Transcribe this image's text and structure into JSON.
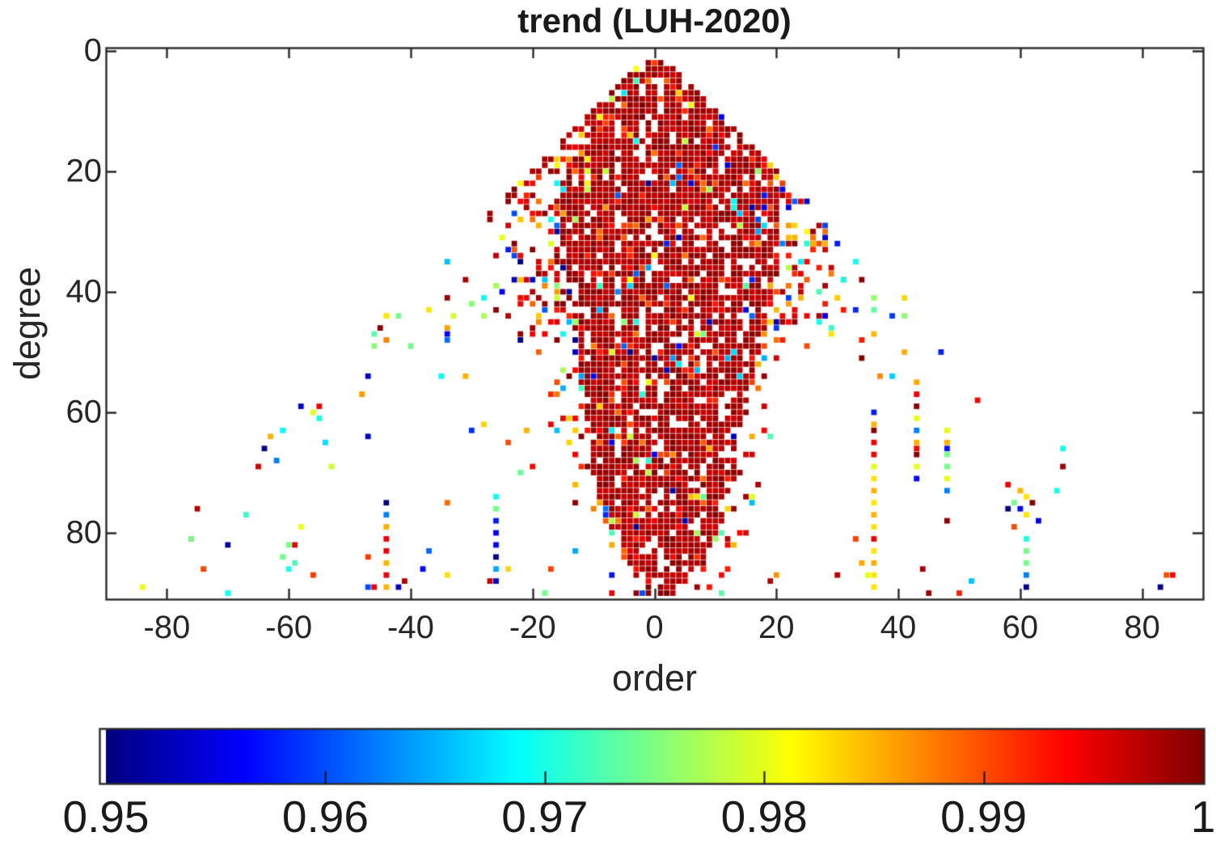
{
  "figure": {
    "background": "#ffffff",
    "axis_color": "#2b2b2b",
    "text_color": "#262626"
  },
  "chart_data": {
    "type": "heatmap",
    "title": "trend (LUH-2020)",
    "xlabel": "order",
    "ylabel": "degree",
    "xlim": [
      -90,
      90
    ],
    "ylim": [
      -0.5,
      91
    ],
    "y_reversed": true,
    "x_ticks": [
      -80,
      -60,
      -40,
      -20,
      0,
      20,
      40,
      60,
      80
    ],
    "y_ticks": [
      0,
      20,
      40,
      60,
      80
    ],
    "grid": false,
    "legend": "none",
    "colormap": "jet",
    "clim": [
      0.95,
      1
    ],
    "colorbar": {
      "orientation": "horizontal",
      "tick_values": [
        0.95,
        0.96,
        0.97,
        0.98,
        0.99,
        1
      ],
      "tick_labels": [
        "0.95",
        "0.96",
        "0.97",
        "0.98",
        "0.99",
        "1"
      ],
      "inner_ticks": [
        0.96,
        0.97,
        0.98,
        0.99
      ],
      "low_clip_color": "#ffffff"
    },
    "description": "Spherical-harmonic triangle plot (|order| <= degree, degree 2..90, apex at top). Dense dark-red mass (values ~0.994-1) around order 0 widening to ~|15-20| near degree 20-30 and narrowing toward degree ~88; upper wings (degree < ~48) sparsely filled with mixed jet colors; lower wings nearly empty except isolated points and vertical streaks.",
    "generator": {
      "seed": 1337,
      "center_order": 1,
      "mass_halfwidth_left": [
        [
          2,
          2
        ],
        [
          8,
          8
        ],
        [
          14,
          12
        ],
        [
          20,
          15
        ],
        [
          25,
          17
        ],
        [
          32,
          16
        ],
        [
          45,
          14
        ],
        [
          55,
          13
        ],
        [
          62,
          12
        ],
        [
          70,
          11
        ],
        [
          78,
          9
        ],
        [
          84,
          6
        ],
        [
          88,
          3
        ],
        [
          90,
          2
        ]
      ],
      "mass_halfwidth_right": [
        [
          2,
          2
        ],
        [
          8,
          9
        ],
        [
          14,
          14
        ],
        [
          20,
          18
        ],
        [
          25,
          20
        ],
        [
          32,
          19
        ],
        [
          45,
          17
        ],
        [
          55,
          15
        ],
        [
          62,
          13
        ],
        [
          70,
          12
        ],
        [
          78,
          10
        ],
        [
          84,
          7
        ],
        [
          88,
          3
        ],
        [
          90,
          2
        ]
      ],
      "p_core": 0.84,
      "p_core_top": 0.93,
      "core_top_degree": 8,
      "halo_width_upper": 13,
      "halo_width_lower": 6,
      "p_halo_upper": 0.36,
      "p_halo_lower": 0.14,
      "upper_wing_max_degree": 48,
      "p_wing_upper": 0.055,
      "p_wing_lower": 0.012,
      "edge_band_max_degree": 28,
      "bottom_band_start": 86,
      "p_bottom": 0.04,
      "mix": {
        "core": [
          [
            0.84,
            0.996,
            0.004
          ],
          [
            0.93,
            0.988,
            0.008
          ],
          [
            1.0,
            0.95,
            0.05
          ]
        ],
        "halo": [
          [
            0.5,
            0.992,
            0.008
          ],
          [
            0.62,
            0.983,
            0.009
          ],
          [
            1.0,
            0.95,
            0.05
          ]
        ],
        "wing": [
          [
            0.25,
            0.99,
            0.01
          ],
          [
            1.0,
            0.95,
            0.05
          ]
        ],
        "edge": [
          [
            0.75,
            0.9955,
            0.0045
          ],
          [
            1.0,
            0.95,
            0.05
          ]
        ]
      }
    },
    "streaks": [
      {
        "order": -44,
        "cells": [
          [
            75,
            0.95
          ],
          [
            77,
            0.9625
          ],
          [
            79,
            0.985
          ],
          [
            81,
            0.9945
          ],
          [
            83,
            0.9945
          ],
          [
            85,
            0.985
          ],
          [
            87,
            0.9945
          ],
          [
            89,
            0.985
          ]
        ]
      },
      {
        "order": -26,
        "cells": [
          [
            74,
            0.9695
          ],
          [
            76,
            0.9745
          ],
          [
            78,
            0.9575
          ],
          [
            80,
            0.956
          ],
          [
            82,
            0.9565
          ],
          [
            84,
            0.9505
          ],
          [
            86,
            0.9645
          ],
          [
            88,
            0.9535
          ]
        ]
      },
      {
        "order": 36,
        "cells": [
          [
            60,
            0.9575
          ],
          [
            62,
            0.985
          ],
          [
            63,
            0.9995
          ],
          [
            65,
            0.9945
          ],
          [
            67,
            0.9945
          ],
          [
            69,
            0.98
          ],
          [
            71,
            0.9825
          ],
          [
            73,
            0.985
          ],
          [
            75,
            0.9825
          ],
          [
            77,
            0.985
          ],
          [
            79,
            0.9825
          ],
          [
            81,
            0.9945
          ],
          [
            83,
            0.9825
          ],
          [
            85,
            0.985
          ],
          [
            87,
            0.9825
          ],
          [
            89,
            0.9825
          ]
        ]
      },
      {
        "order": 43,
        "cells": [
          [
            55,
            0.9855
          ],
          [
            57,
            0.9945
          ],
          [
            59,
            0.9995
          ],
          [
            61,
            0.98
          ],
          [
            63,
            0.9625
          ],
          [
            65,
            0.985
          ],
          [
            67,
            0.9995
          ],
          [
            69,
            0.98
          ],
          [
            71,
            0.9565
          ]
        ]
      },
      {
        "order": 48,
        "cells": [
          [
            63,
            0.98
          ],
          [
            65,
            0.985
          ],
          [
            67,
            0.9745
          ],
          [
            69,
            0.9745
          ],
          [
            71,
            0.98
          ],
          [
            73,
            0.9625
          ]
        ]
      },
      {
        "order": 61,
        "cells": [
          [
            81,
            0.97
          ],
          [
            83,
            0.9745
          ],
          [
            85,
            0.9745
          ],
          [
            87,
            0.9625
          ],
          [
            89,
            0.9505
          ]
        ]
      }
    ],
    "extra_points": [
      [
        -76,
        81,
        0.9745
      ],
      [
        84,
        87,
        0.99
      ],
      [
        83,
        89,
        0.9505
      ],
      [
        -63,
        64,
        0.985
      ],
      [
        -64,
        66,
        0.9505
      ],
      [
        -62,
        68,
        0.9625
      ],
      [
        -60,
        82,
        0.9745
      ],
      [
        -61,
        84,
        0.9745
      ],
      [
        -60,
        86,
        0.97
      ],
      [
        -55,
        59,
        0.9945
      ],
      [
        -56,
        60,
        0.98
      ],
      [
        -55,
        61,
        0.97
      ],
      [
        67,
        66,
        0.9695
      ],
      [
        66,
        73,
        0.97
      ],
      [
        -47,
        64,
        0.9535
      ],
      [
        -35,
        54,
        0.9695
      ],
      [
        -31,
        54,
        0.985
      ],
      [
        25,
        49,
        0.99
      ],
      [
        29,
        47,
        0.9825
      ],
      [
        -21,
        63,
        0.985
      ],
      [
        -24,
        65,
        0.99
      ],
      [
        58,
        72,
        0.9945
      ],
      [
        60,
        73,
        0.985
      ],
      [
        61,
        74,
        0.9825
      ],
      [
        59,
        75,
        0.9745
      ],
      [
        62,
        75,
        0.9995
      ],
      [
        60,
        76,
        0.9565
      ],
      [
        58,
        76,
        0.9505
      ],
      [
        61,
        77,
        0.9825
      ],
      [
        63,
        78,
        0.956
      ],
      [
        59,
        79,
        0.99
      ],
      [
        25,
        32,
        0.97
      ],
      [
        26,
        32,
        0.985
      ],
      [
        27,
        32,
        0.99
      ],
      [
        28,
        32,
        0.985
      ],
      [
        30,
        32,
        0.9575
      ],
      [
        24,
        41,
        0.985
      ],
      [
        28,
        44,
        0.956
      ],
      [
        31,
        38,
        0.9695
      ],
      [
        -44,
        44,
        0.9825
      ],
      [
        -40,
        49,
        0.9745
      ],
      [
        -37,
        43,
        0.9825
      ],
      [
        -34,
        47,
        0.956
      ]
    ]
  }
}
